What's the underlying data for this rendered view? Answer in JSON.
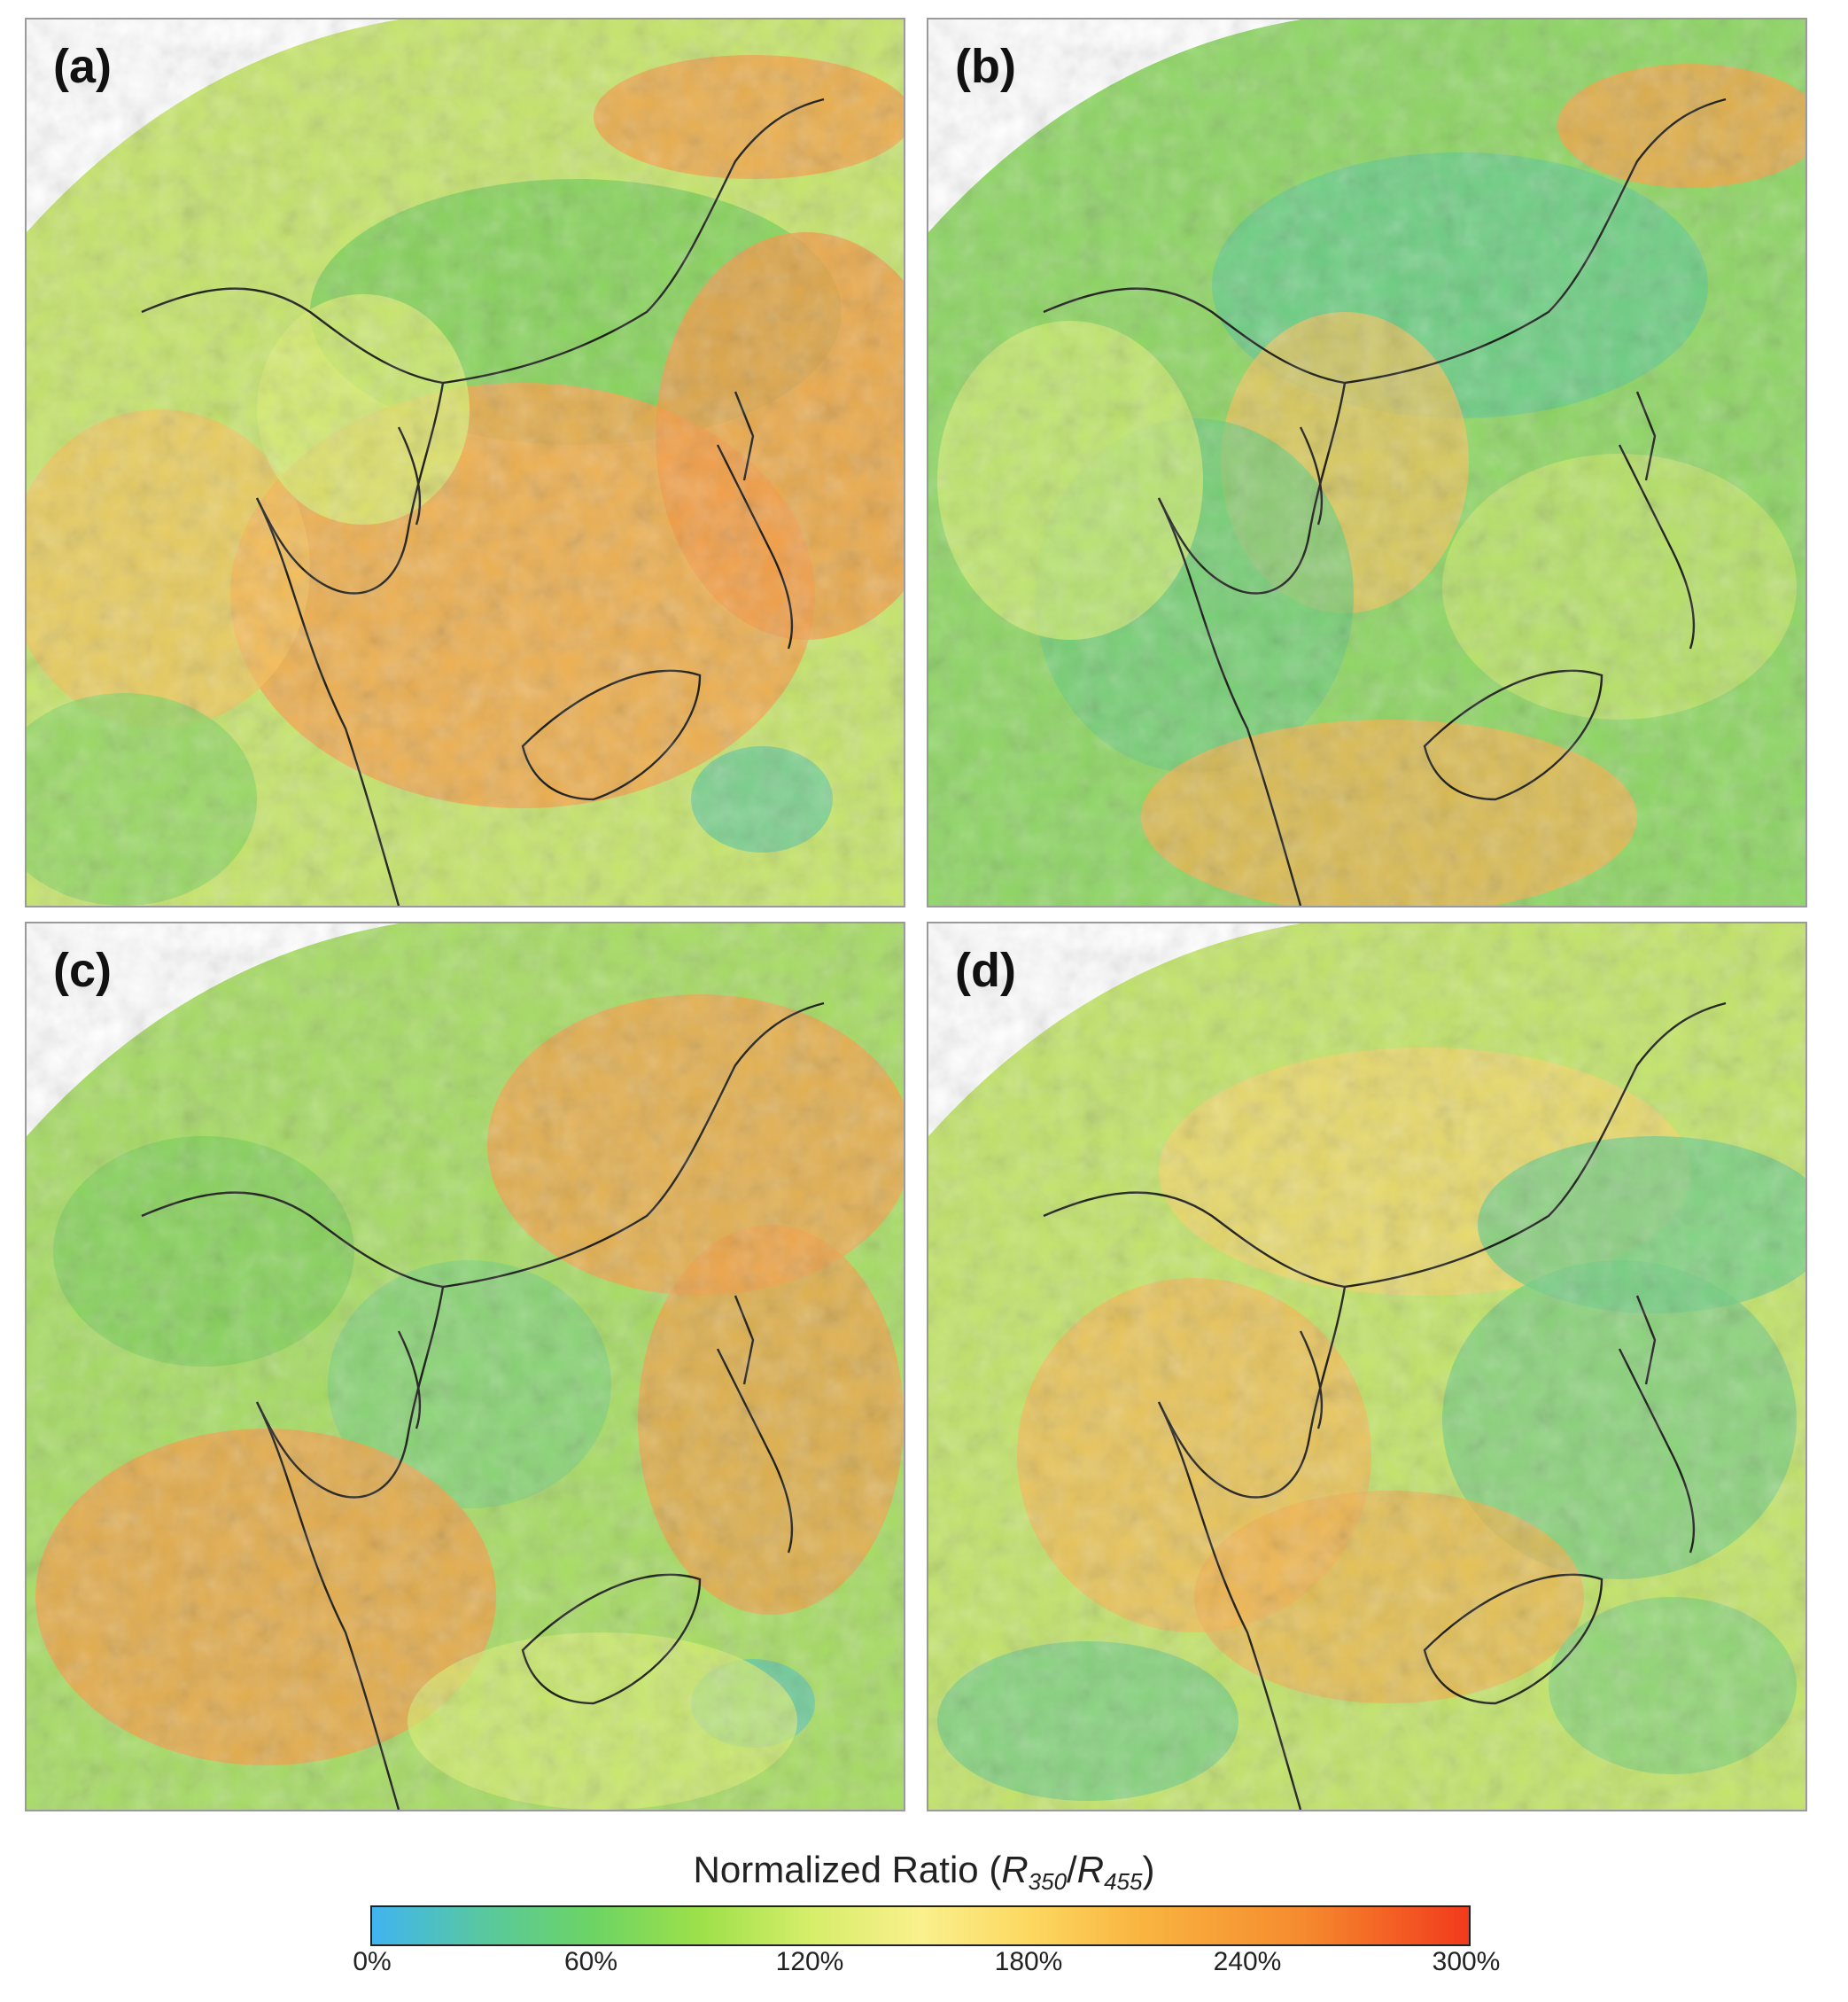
{
  "panels": [
    {
      "label": "(a)"
    },
    {
      "label": "(b)"
    },
    {
      "label": "(c)"
    },
    {
      "label": "(d)"
    }
  ],
  "colorbar": {
    "title_prefix": "Normalized Ratio (",
    "numerator": "R",
    "numerator_sub": "350",
    "divider": "/",
    "denominator": "R",
    "denominator_sub": "455",
    "title_suffix": ")",
    "ticks": [
      "0%",
      "60%",
      "120%",
      "180%",
      "240%",
      "300%"
    ],
    "colors": [
      "#40b4f0",
      "#6cd464",
      "#faf08c",
      "#f9b540",
      "#f23a1c"
    ]
  }
}
